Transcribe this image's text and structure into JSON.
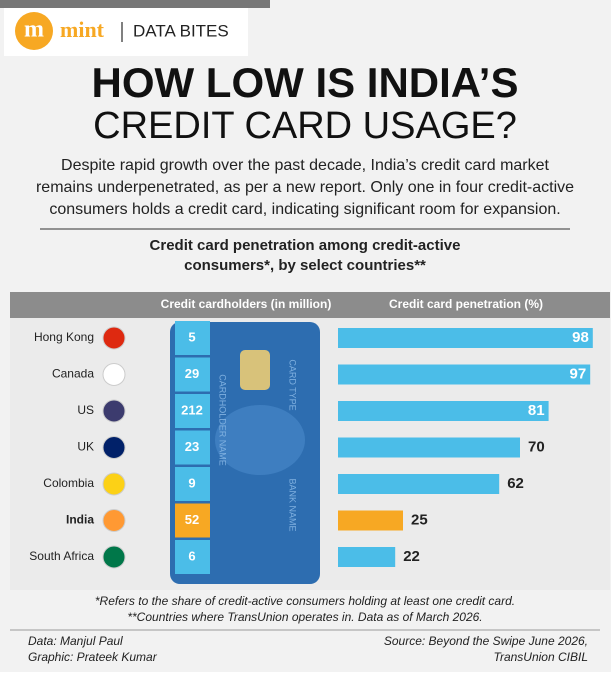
{
  "header": {
    "logo": "m",
    "brand": "mint",
    "section": "DATA BITES"
  },
  "title": [
    "HOW LOW IS INDIA’S",
    "CREDIT CARD USAGE?"
  ],
  "subtitle": [
    "Despite rapid growth over the past decade, India’s credit card market",
    "remains underpenetrated, as per a new report. Only one in four credit-active",
    "consumers holds a credit card, indicating significant room for expansion."
  ],
  "chart_data": {
    "type": "bar",
    "title": [
      "Credit card penetration among credit-active",
      "consumers*, by select countries**"
    ],
    "categories": [
      "Hong Kong",
      "Canada",
      "US",
      "UK",
      "Colombia",
      "India",
      "South Africa"
    ],
    "series": [
      {
        "name": "Credit cardholders (in million)",
        "values": [
          5,
          29,
          212,
          23,
          9,
          52,
          6
        ],
        "color": "#4bbde8"
      },
      {
        "name": "Credit card penetration (%)",
        "values": [
          98,
          97,
          81,
          70,
          62,
          25,
          22
        ],
        "color": "#4bbde8"
      }
    ],
    "highlight": "India",
    "highlight_color": "#f7a823",
    "card_text": [
      "CARDHOLDER NAME",
      "CARD TYPE",
      "BANK NAME"
    ]
  },
  "footnotes": [
    "*Refers to the share of credit-active consumers holding at least one credit card.",
    "**Countries where TransUnion operates in. Data as of March 2026."
  ],
  "credits": {
    "left": [
      "Data: Manjul Paul",
      "Graphic: Prateek Kumar"
    ],
    "right": [
      "Source: Beyond the Swipe June 2026,",
      "TransUnion CIBIL"
    ]
  }
}
